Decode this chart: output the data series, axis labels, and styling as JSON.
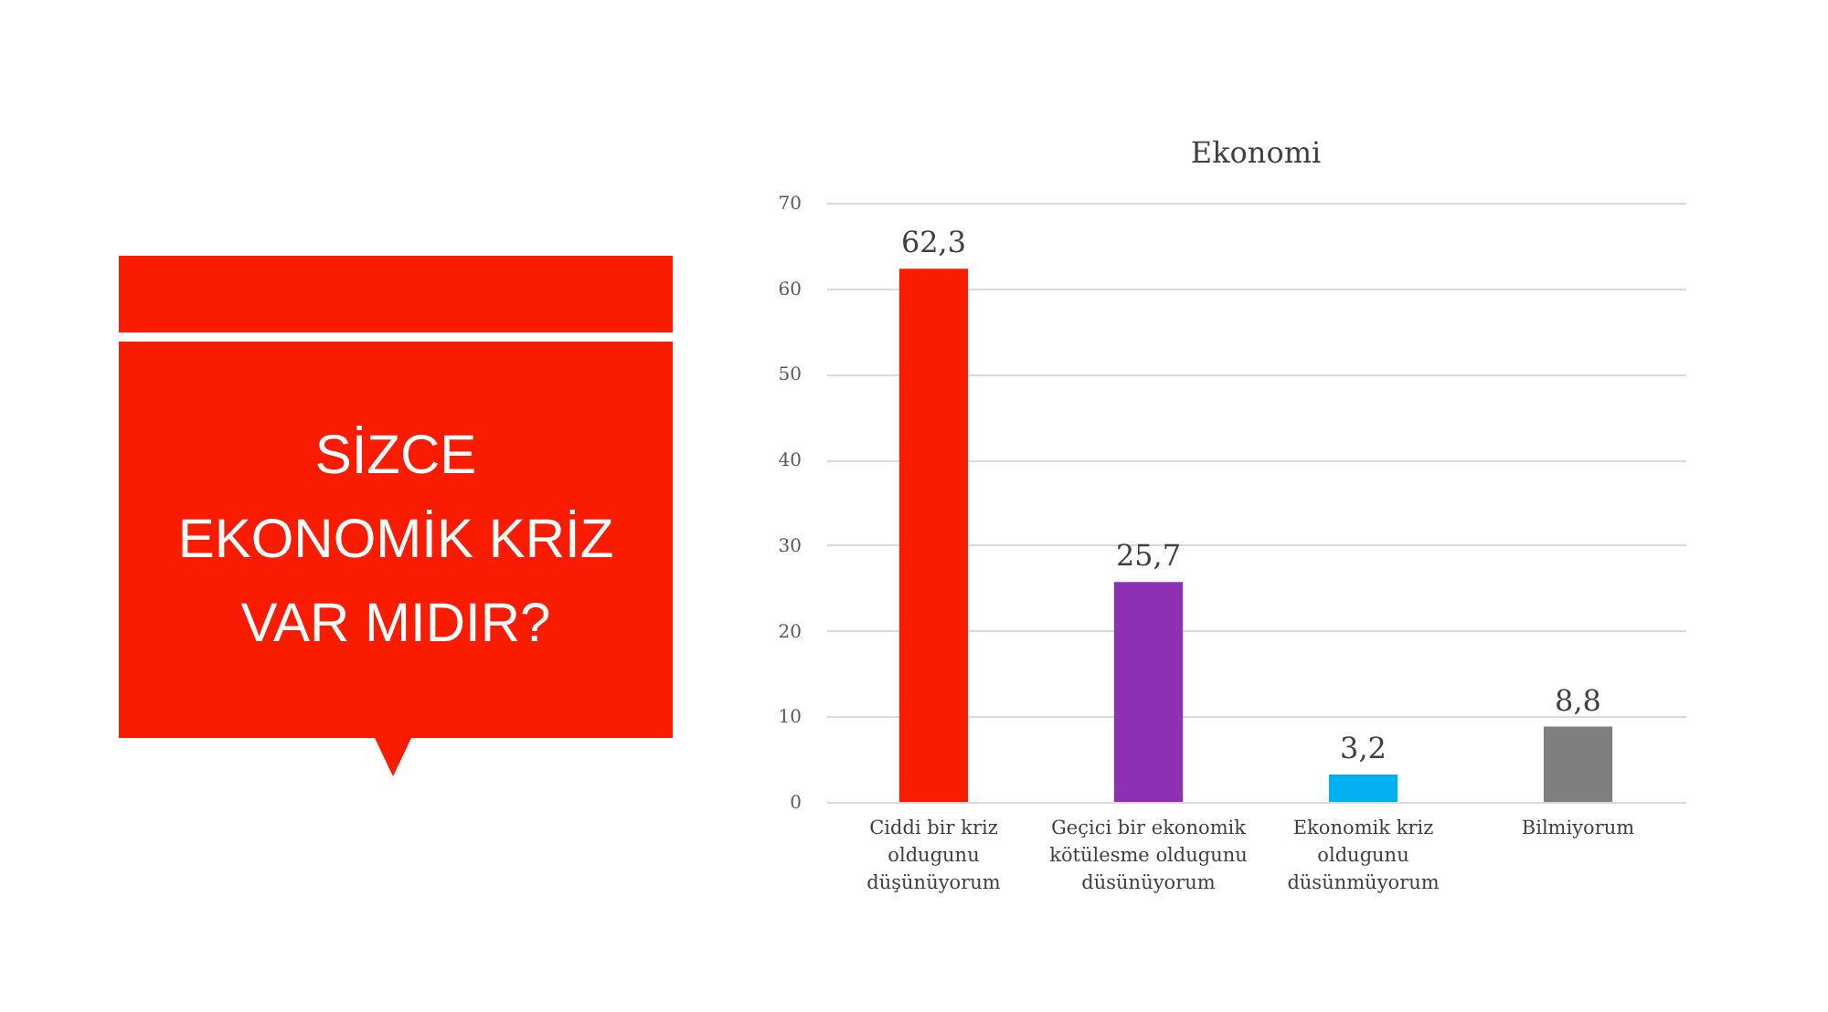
{
  "chart_data": {
    "type": "bar",
    "title": "Ekonomi",
    "categories": [
      "Ciddi bir kriz oldugunu düşünüyorum",
      "Geçici bir ekonomik kötülesme oldugunu düsünüyorum",
      "Ekonomik kriz oldugunu düsünmüyorum",
      "Bilmiyorum"
    ],
    "values": [
      62.3,
      25.7,
      3.2,
      8.8
    ],
    "value_labels": [
      "62,3",
      "25,7",
      "3,2",
      "8,8"
    ],
    "colors": [
      "#f91c00",
      "#8e30b4",
      "#00b0f0",
      "#7f7f7f"
    ],
    "ylim": [
      0,
      70
    ],
    "yticks": [
      0,
      10,
      20,
      30,
      40,
      50,
      60,
      70
    ],
    "grid": "y",
    "annotations": [
      "SİZCE EKONOMİK KRİZ VAR MIDIR?"
    ]
  }
}
